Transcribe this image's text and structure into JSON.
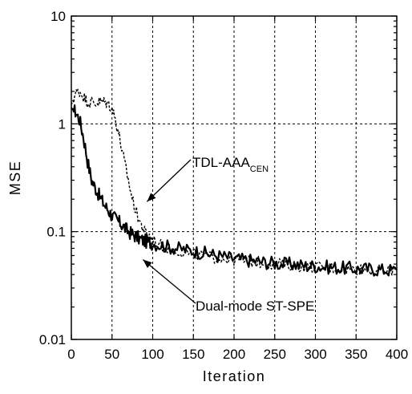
{
  "chart_data": {
    "type": "line",
    "xlabel": "Iteration",
    "ylabel": "MSE",
    "xlim": [
      0,
      400
    ],
    "ylim": [
      0.01,
      10
    ],
    "yscale": "log",
    "grid": true,
    "x_ticks": [
      0,
      50,
      100,
      150,
      200,
      250,
      300,
      350,
      400
    ],
    "x_tick_labels": [
      "0",
      "50",
      "100",
      "150",
      "200",
      "250",
      "300",
      "350",
      "400"
    ],
    "y_ticks": [
      0.01,
      0.1,
      1,
      10
    ],
    "y_tick_labels": [
      "0.01",
      "0.1",
      "1",
      "10"
    ],
    "series": [
      {
        "name": "Dual-mode ST-SPE",
        "style": "solid",
        "x": [
          0,
          5,
          10,
          15,
          20,
          25,
          30,
          35,
          40,
          45,
          50,
          55,
          60,
          65,
          70,
          75,
          80,
          85,
          90,
          95,
          100,
          110,
          120,
          130,
          140,
          150,
          160,
          170,
          180,
          190,
          200,
          210,
          220,
          230,
          240,
          250,
          260,
          270,
          280,
          290,
          300,
          310,
          320,
          330,
          340,
          350,
          360,
          370,
          380,
          390,
          400
        ],
        "y": [
          1.4,
          1.3,
          1.1,
          0.75,
          0.45,
          0.3,
          0.25,
          0.21,
          0.18,
          0.16,
          0.14,
          0.13,
          0.12,
          0.11,
          0.1,
          0.095,
          0.09,
          0.085,
          0.082,
          0.08,
          0.078,
          0.075,
          0.072,
          0.07,
          0.068,
          0.066,
          0.064,
          0.062,
          0.06,
          0.058,
          0.056,
          0.055,
          0.054,
          0.053,
          0.052,
          0.051,
          0.05,
          0.05,
          0.049,
          0.048,
          0.048,
          0.047,
          0.047,
          0.046,
          0.046,
          0.045,
          0.045,
          0.045,
          0.044,
          0.044,
          0.044
        ]
      },
      {
        "name": "TDL-AAA_CEN",
        "style": "dashed",
        "x": [
          0,
          5,
          10,
          15,
          20,
          25,
          30,
          35,
          40,
          45,
          50,
          55,
          60,
          65,
          70,
          75,
          80,
          85,
          90,
          95,
          100,
          110,
          120,
          130,
          140,
          150,
          160,
          170,
          180,
          190,
          200,
          210,
          220,
          230,
          240,
          250,
          260,
          270,
          280,
          290,
          300,
          310,
          320,
          330,
          340,
          350,
          360,
          370,
          380,
          390,
          400
        ],
        "y": [
          1.5,
          1.9,
          2.0,
          1.8,
          1.6,
          1.6,
          1.55,
          1.6,
          1.6,
          1.55,
          1.4,
          1.05,
          0.7,
          0.45,
          0.3,
          0.2,
          0.15,
          0.12,
          0.1,
          0.092,
          0.085,
          0.075,
          0.07,
          0.067,
          0.064,
          0.062,
          0.06,
          0.058,
          0.057,
          0.056,
          0.055,
          0.054,
          0.053,
          0.052,
          0.051,
          0.05,
          0.05,
          0.049,
          0.048,
          0.048,
          0.047,
          0.047,
          0.046,
          0.046,
          0.045,
          0.045,
          0.045,
          0.044,
          0.044,
          0.044,
          0.044
        ]
      }
    ],
    "annotations": [
      {
        "main": "TDL-AAA",
        "sub": "CEN",
        "target_x": 93,
        "target_y": 0.19
      },
      {
        "main": "Dual-mode ST-SPE",
        "sub": "",
        "target_x": 88,
        "target_y": 0.055
      }
    ]
  }
}
